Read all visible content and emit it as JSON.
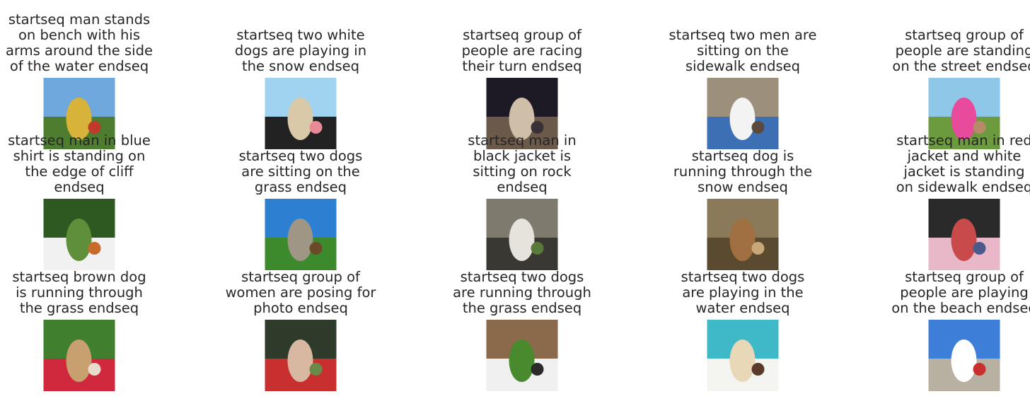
{
  "captions": [
    "startseq man stands\non bench with his\narms around the side\nof the water endseq",
    "startseq two white\ndogs are playing in\nthe snow endseq",
    "startseq group of\npeople are racing\ntheir turn endseq",
    "startseq two men are\nsitting on the\nsidewalk endseq",
    "startseq group of\npeople are standing\non the street endseq",
    "startseq man in blue\nshirt is standing on\nthe edge of cliff\nendseq",
    "startseq two dogs\nare sitting on the\ngrass endseq",
    "startseq man in\nblack jacket is\nsitting on rock\nendseq",
    "startseq dog is\nrunning through the\nsnow endseq",
    "startseq man in red\njacket and white\njacket is standing\non sidewalk endseq",
    "startseq brown dog\nis running through\nthe grass endseq",
    "startseq group of\nwomen are posing for\nphoto endseq",
    "startseq two dogs\nare running through\nthe grass endseq",
    "startseq two dogs\nare playing in the\nwater endseq",
    "startseq group of\npeople are playing\non the beach endseq"
  ],
  "images": [
    {
      "name": "photo-yard-building",
      "colors": [
        "#6fa8dc",
        "#d8b33a",
        "#4f7d2f",
        "#c0392b"
      ]
    },
    {
      "name": "photo-dogs-beach",
      "colors": [
        "#9fd3f0",
        "#d9c9a8",
        "#222222",
        "#e98b96"
      ]
    },
    {
      "name": "photo-night-crowd",
      "colors": [
        "#1d1a26",
        "#cfbfa8",
        "#6b5a4a",
        "#3a3038"
      ]
    },
    {
      "name": "photo-men-sidewalk",
      "colors": [
        "#9c8f7c",
        "#f3f3f3",
        "#3d6fb5",
        "#5a4a3c"
      ]
    },
    {
      "name": "photo-pink-street",
      "colors": [
        "#8fc7e8",
        "#e84a9c",
        "#6b9b3c",
        "#b78a6a"
      ]
    },
    {
      "name": "photo-man-forest",
      "colors": [
        "#2e5a22",
        "#5f8f3a",
        "#f1f1f1",
        "#c96a2a"
      ]
    },
    {
      "name": "photo-dogs-grass-building",
      "colors": [
        "#2c7fd1",
        "#a09685",
        "#3c8a2c",
        "#6b4a2a"
      ]
    },
    {
      "name": "photo-bird-rocks",
      "colors": [
        "#7f7a6e",
        "#e6e2dc",
        "#3a3833",
        "#5a7a3a"
      ]
    },
    {
      "name": "photo-dog-leaves",
      "colors": [
        "#8a7a5a",
        "#a07042",
        "#5a4a30",
        "#c8a878"
      ]
    },
    {
      "name": "photo-street-crowd",
      "colors": [
        "#2a2a2a",
        "#c94a4a",
        "#e8b8c8",
        "#4a5a8a"
      ]
    },
    {
      "name": "photo-dog-frisbee",
      "colors": [
        "#3f7f2e",
        "#c8a070",
        "#d0283c",
        "#e8dccc"
      ]
    },
    {
      "name": "photo-women-group",
      "colors": [
        "#2e3a2a",
        "#d8b8a0",
        "#c83030",
        "#6a8a4a"
      ]
    },
    {
      "name": "photo-dogs-fence",
      "colors": [
        "#8a6a4a",
        "#4a8a2e",
        "#f0f0f0",
        "#2a2a2a"
      ]
    },
    {
      "name": "photo-water-splash",
      "colors": [
        "#3fb8c8",
        "#e8d8b8",
        "#f4f4f0",
        "#5a3a2a"
      ]
    },
    {
      "name": "photo-beach-people",
      "colors": [
        "#3c7ed8",
        "#ffffff",
        "#b8b0a0",
        "#c83030"
      ]
    }
  ]
}
